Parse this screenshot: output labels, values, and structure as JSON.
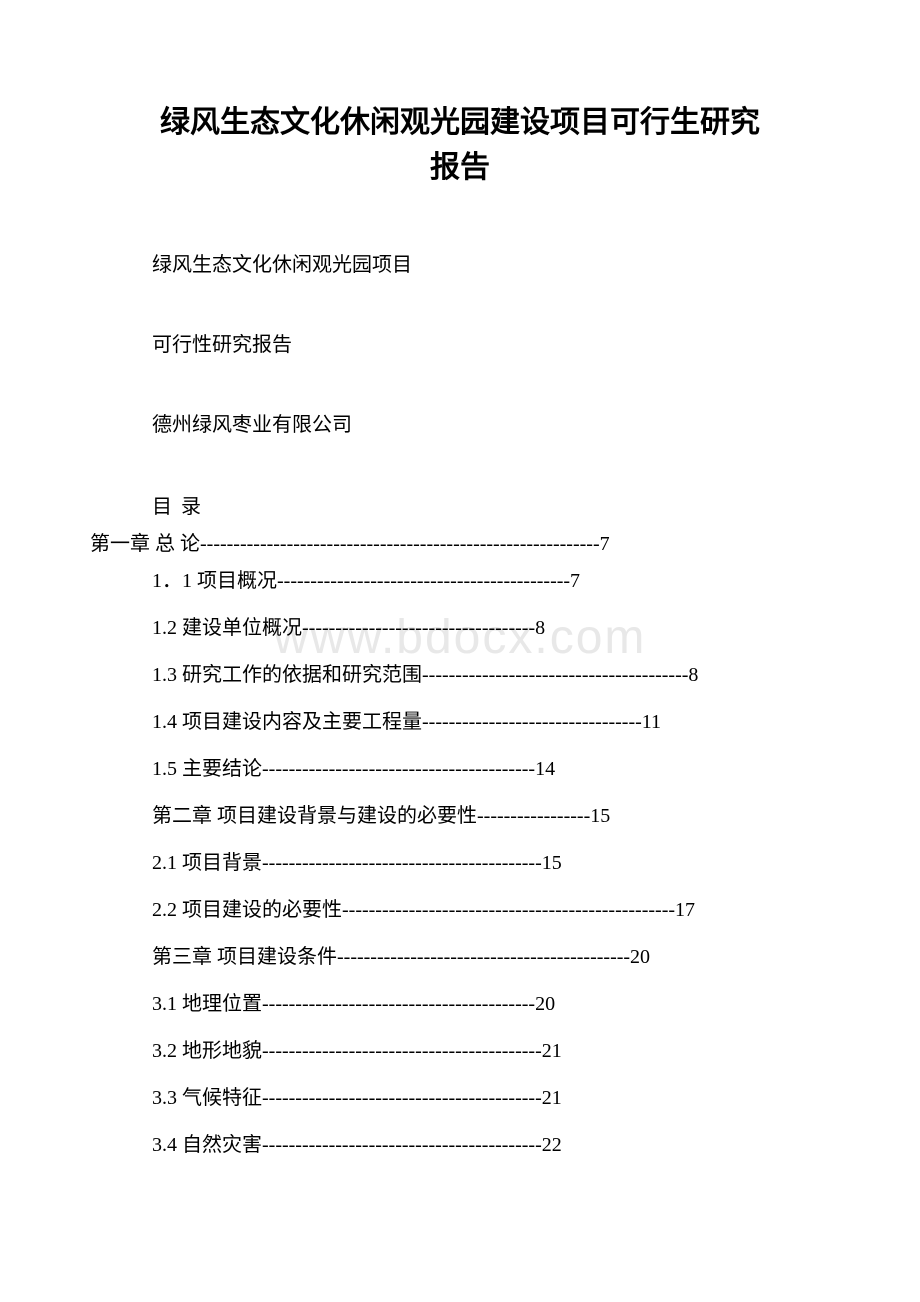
{
  "document": {
    "title_line1": "绿风生态文化休闲观光园建设项目可行生研究",
    "title_line2": "报告",
    "subtitle1": "绿风生态文化休闲观光园项目",
    "subtitle2": "可行性研究报告",
    "subtitle3": "德州绿风枣业有限公司",
    "toc_header": "目 录",
    "watermark": "www.bdocx.com",
    "background_color": "#ffffff",
    "text_color": "#000000",
    "watermark_color": "#e8e8e8",
    "title_fontsize": 30,
    "body_fontsize": 20,
    "toc_entries": [
      {
        "text": "第一章 总 论",
        "dashes": "------------------------------------------------------------",
        "page": "7",
        "indent": "chapter1"
      },
      {
        "text": "1．1 项目概况",
        "dashes": "--------------------------------------------",
        "page": "7",
        "indent": "normal"
      },
      {
        "text": "1.2 建设单位概况",
        "dashes": "-----------------------------------",
        "page": "8",
        "indent": "normal"
      },
      {
        "text": "1.3 研究工作的依据和研究范围",
        "dashes": "----------------------------------------",
        "page": "8",
        "indent": "normal"
      },
      {
        "text": "1.4 项目建设内容及主要工程量",
        "dashes": "---------------------------------",
        "page": "11",
        "indent": "normal"
      },
      {
        "text": "1.5 主要结论",
        "dashes": "-----------------------------------------",
        "page": "14",
        "indent": "normal"
      },
      {
        "text": "第二章 项目建设背景与建设的必要性",
        "dashes": "-----------------",
        "page": "15",
        "indent": "normal"
      },
      {
        "text": "2.1 项目背景",
        "dashes": "------------------------------------------",
        "page": "15",
        "indent": "normal"
      },
      {
        "text": "2.2 项目建设的必要性",
        "dashes": "--------------------------------------------------",
        "page": "17",
        "indent": "normal"
      },
      {
        "text": "第三章 项目建设条件",
        "dashes": "--------------------------------------------",
        "page": "20",
        "indent": "normal"
      },
      {
        "text": "3.1 地理位置",
        "dashes": "-----------------------------------------",
        "page": "20",
        "indent": "normal"
      },
      {
        "text": "3.2 地形地貌",
        "dashes": "------------------------------------------",
        "page": "21",
        "indent": "normal"
      },
      {
        "text": "3.3 气候特征",
        "dashes": "------------------------------------------",
        "page": "21",
        "indent": "normal"
      },
      {
        "text": "3.4 自然灾害",
        "dashes": "------------------------------------------",
        "page": "22",
        "indent": "normal"
      }
    ]
  }
}
